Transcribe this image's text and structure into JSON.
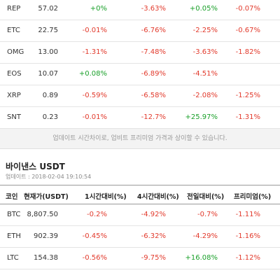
{
  "top_rows": [
    {
      "coin": "REP",
      "price": "57.02",
      "c1": "+0%",
      "c2": "-3.63%",
      "c3": "+0.05%",
      "c4": "-0.07%"
    },
    {
      "coin": "ETC",
      "price": "22.75",
      "c1": "-0.01%",
      "c2": "-6.76%",
      "c3": "-2.25%",
      "c4": "-0.67%"
    },
    {
      "coin": "OMG",
      "price": "13.00",
      "c1": "-1.31%",
      "c2": "-7.48%",
      "c3": "-3.63%",
      "c4": "-1.82%"
    },
    {
      "coin": "EOS",
      "price": "10.07",
      "c1": "+0.08%",
      "c2": "-6.89%",
      "c3": "-4.51%",
      "c4": ""
    },
    {
      "coin": "XRP",
      "price": "0.89",
      "c1": "-0.59%",
      "c2": "-6.58%",
      "c3": "-2.08%",
      "c4": "-1.25%"
    },
    {
      "coin": "SNT",
      "price": "0.23",
      "c1": "-0.01%",
      "c2": "-12.7%",
      "c3": "+25.97%",
      "c4": "-1.31%"
    }
  ],
  "note_text": "업데이트 시간차이로, 업비트 프리미엄 가격과 상이할 수 있습니다.",
  "section": {
    "title": "바이낸스 USDT",
    "updated": "업데이트 : 2018-02-04 19:10:54"
  },
  "headers": [
    "코인",
    "현재가(USDT)",
    "1시간대비(%)",
    "4시간대비(%)",
    "전일대비(%)",
    "프리미엄(%)"
  ],
  "bottom_rows": [
    {
      "coin": "BTC",
      "price": "8,807.50",
      "c1": "-0.2%",
      "c2": "-4.92%",
      "c3": "-0.7%",
      "c4": "-1.11%"
    },
    {
      "coin": "ETH",
      "price": "902.39",
      "c1": "-0.45%",
      "c2": "-6.32%",
      "c3": "-4.29%",
      "c4": "-1.16%"
    },
    {
      "coin": "LTC",
      "price": "154.38",
      "c1": "-0.56%",
      "c2": "-9.75%",
      "c3": "+16.08%",
      "c4": "-1.12%"
    }
  ]
}
